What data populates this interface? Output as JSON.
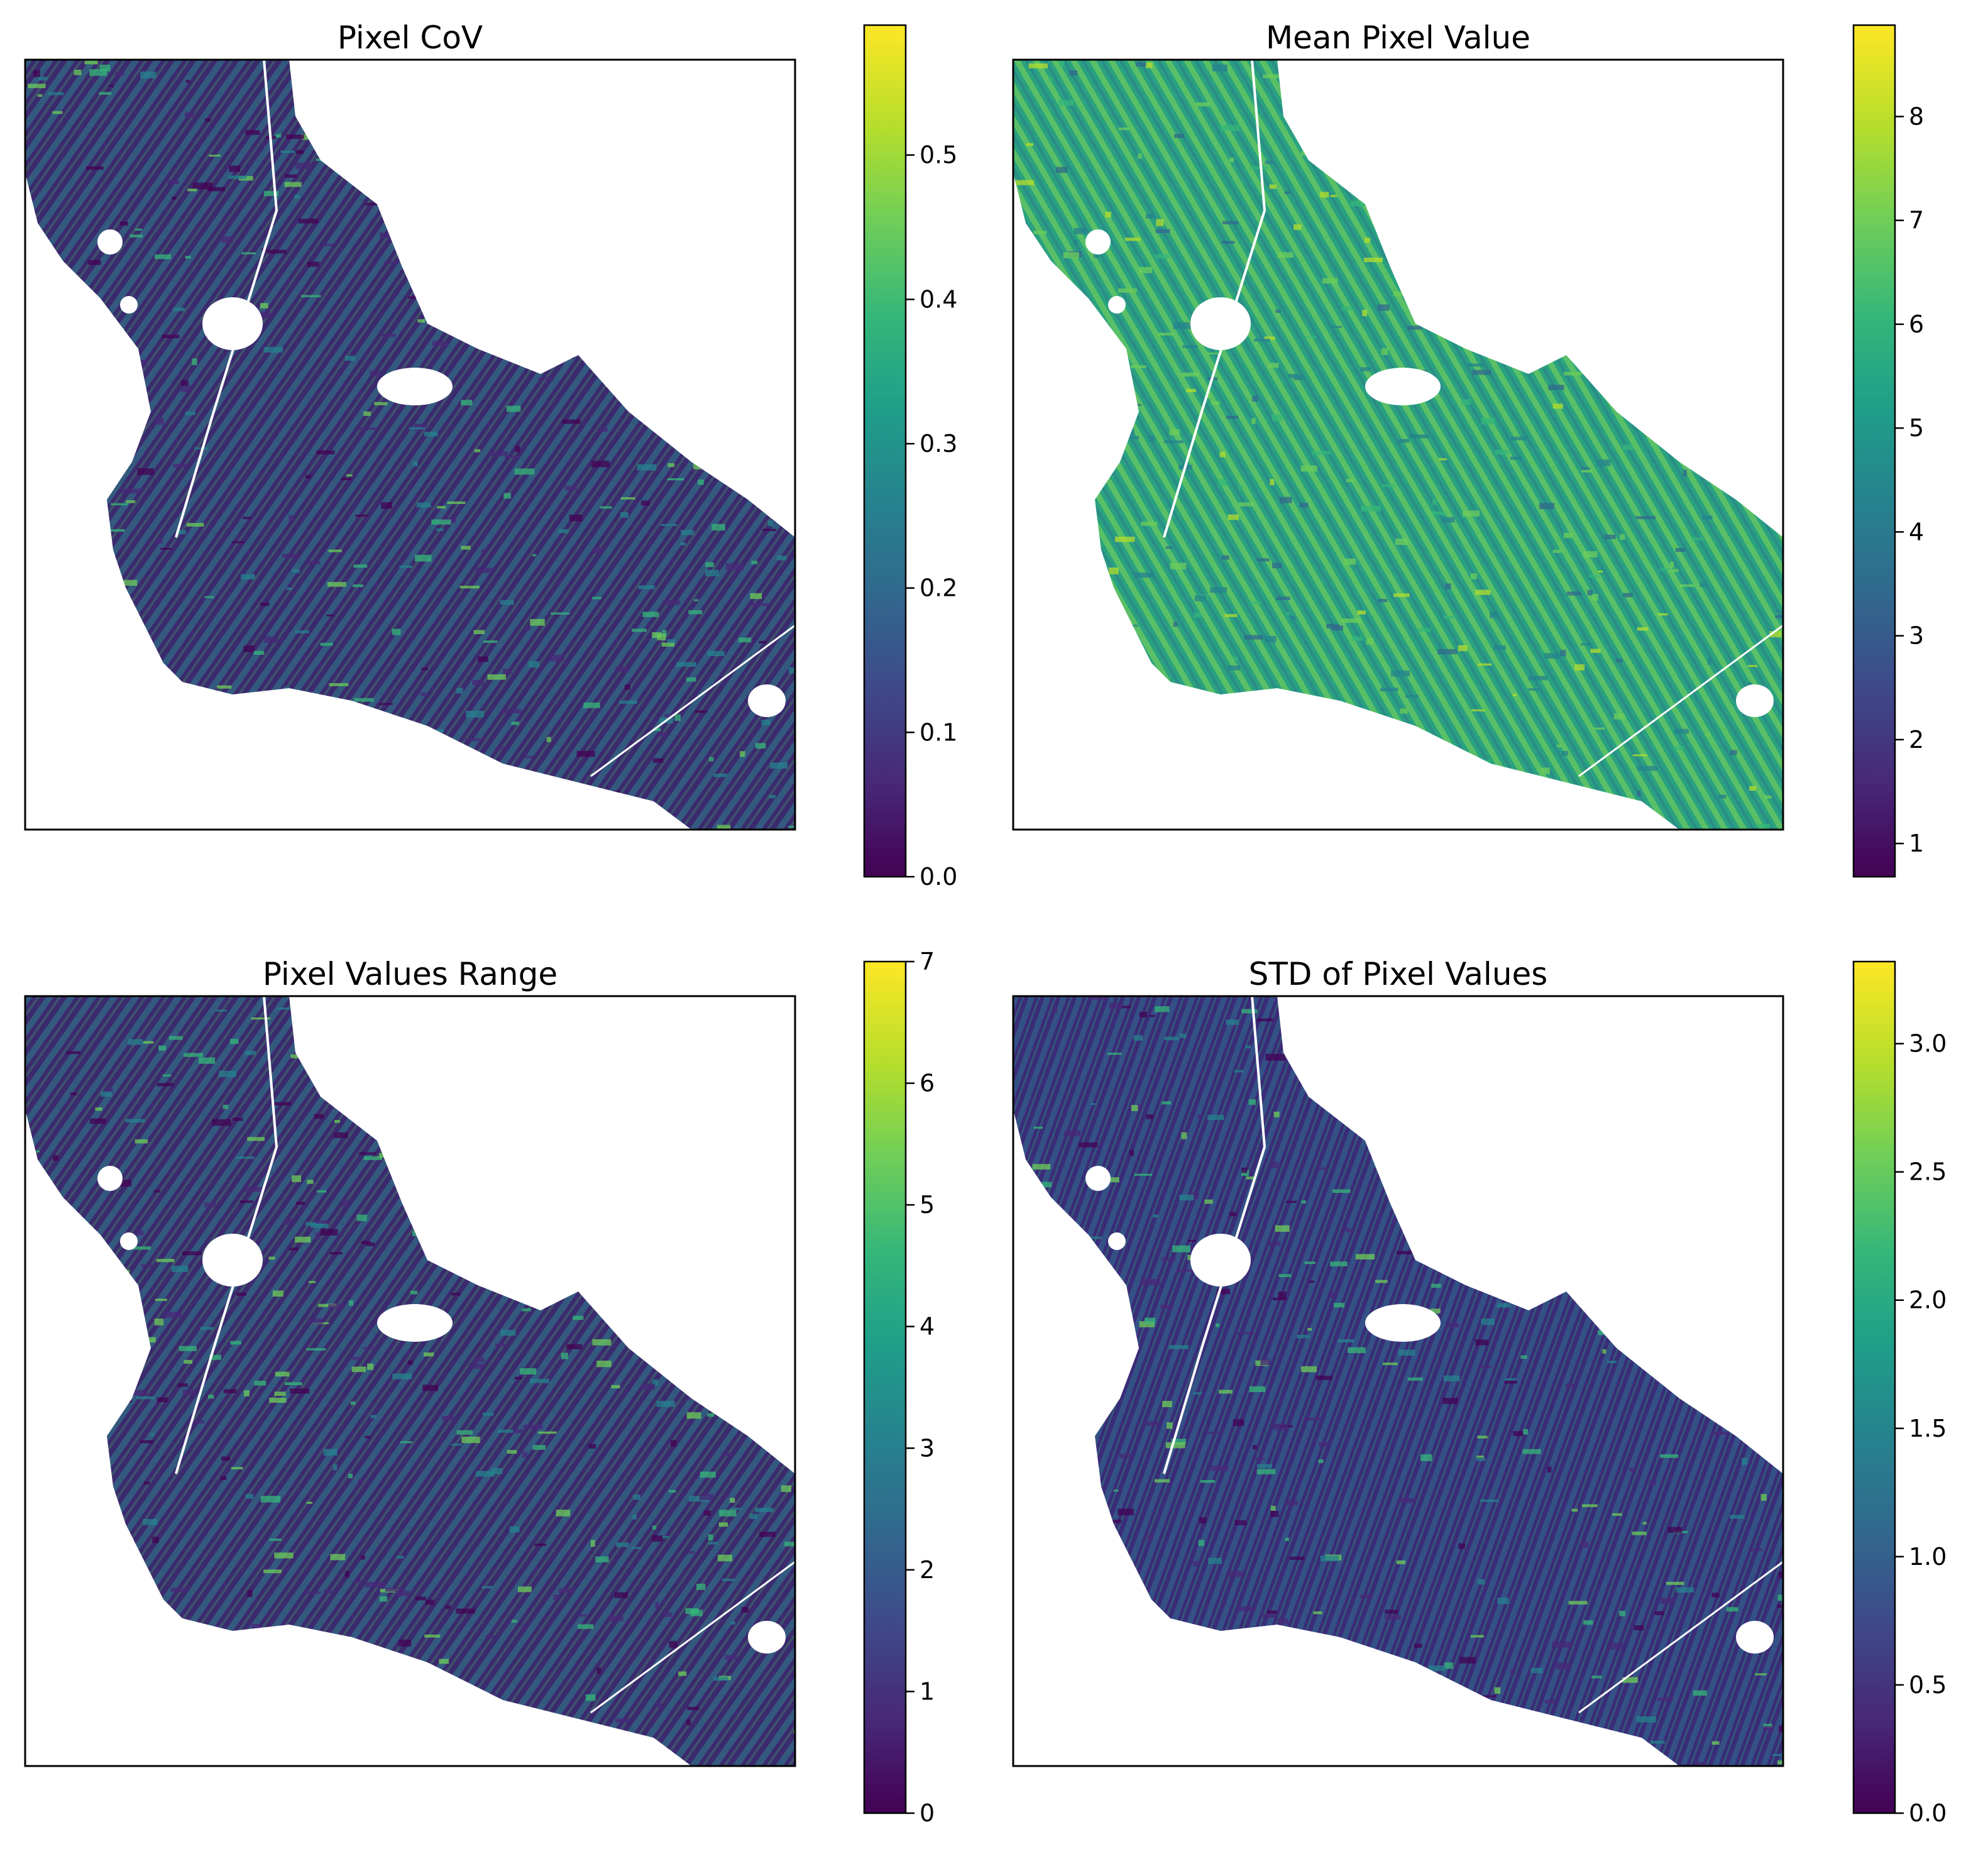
{
  "colors": {
    "viridis": [
      "#440154",
      "#482878",
      "#3e4989",
      "#31688e",
      "#26828e",
      "#1f9e89",
      "#35b779",
      "#6ece58",
      "#b5de2b",
      "#fde725"
    ],
    "frame": "#000000",
    "background": "#ffffff"
  },
  "panels": [
    {
      "title": "Pixel CoV",
      "map_type": "raster",
      "colorbar": {
        "min": 0.0,
        "max": 0.59,
        "ticks": [
          "0.0",
          "0.1",
          "0.2",
          "0.3",
          "0.4",
          "0.5"
        ],
        "tick_values": [
          0.0,
          0.1,
          0.2,
          0.3,
          0.4,
          0.5
        ]
      }
    },
    {
      "title": "Mean Pixel Value",
      "map_type": "raster",
      "colorbar": {
        "min": 0.68,
        "max": 8.88,
        "ticks": [
          "1",
          "2",
          "3",
          "4",
          "5",
          "6",
          "7",
          "8"
        ],
        "tick_values": [
          1,
          2,
          3,
          4,
          5,
          6,
          7,
          8
        ]
      }
    },
    {
      "title": "Pixel Values Range",
      "map_type": "raster",
      "colorbar": {
        "min": 0,
        "max": 7,
        "ticks": [
          "0",
          "1",
          "2",
          "3",
          "4",
          "5",
          "6",
          "7"
        ],
        "tick_values": [
          0,
          1,
          2,
          3,
          4,
          5,
          6,
          7
        ]
      }
    },
    {
      "title": "STD of Pixel Values",
      "map_type": "raster",
      "colorbar": {
        "min": 0.0,
        "max": 3.32,
        "ticks": [
          "0.0",
          "0.5",
          "1.0",
          "1.5",
          "2.0",
          "2.5",
          "3.0"
        ],
        "tick_values": [
          0.0,
          0.5,
          1.0,
          1.5,
          2.0,
          2.5,
          3.0
        ]
      }
    }
  ]
}
